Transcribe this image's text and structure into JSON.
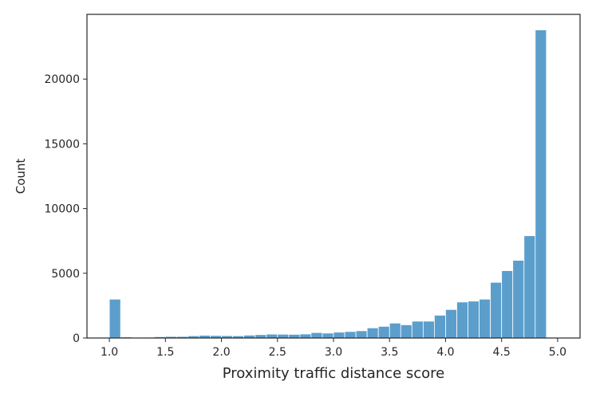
{
  "chart_data": {
    "type": "bar",
    "title": "",
    "xlabel": "Proximity traffic distance score",
    "ylabel": "Count",
    "xlim": [
      0.8,
      5.2
    ],
    "ylim": [
      0,
      25000
    ],
    "x_ticks": [
      1.0,
      1.5,
      2.0,
      2.5,
      3.0,
      3.5,
      4.0,
      4.5,
      5.0
    ],
    "x_tick_labels": [
      "1.0",
      "1.5",
      "2.0",
      "2.5",
      "3.0",
      "3.5",
      "4.0",
      "4.5",
      "5.0"
    ],
    "y_ticks": [
      0,
      5000,
      10000,
      15000,
      20000
    ],
    "y_tick_labels": [
      "0",
      "5000",
      "10000",
      "15000",
      "20000"
    ],
    "bin_start": 1.0,
    "bin_end": 5.0,
    "bins": 40,
    "counts": [
      3000,
      80,
      40,
      60,
      100,
      120,
      120,
      170,
      210,
      190,
      180,
      170,
      220,
      260,
      300,
      290,
      280,
      310,
      420,
      380,
      450,
      500,
      560,
      780,
      900,
      1150,
      1020,
      1300,
      1300,
      1760,
      2200,
      2780,
      2850,
      3000,
      4300,
      5200,
      6000,
      7900,
      23800,
      0
    ],
    "bar_color": "#5b9ecc",
    "grid": false,
    "legend": "none"
  }
}
